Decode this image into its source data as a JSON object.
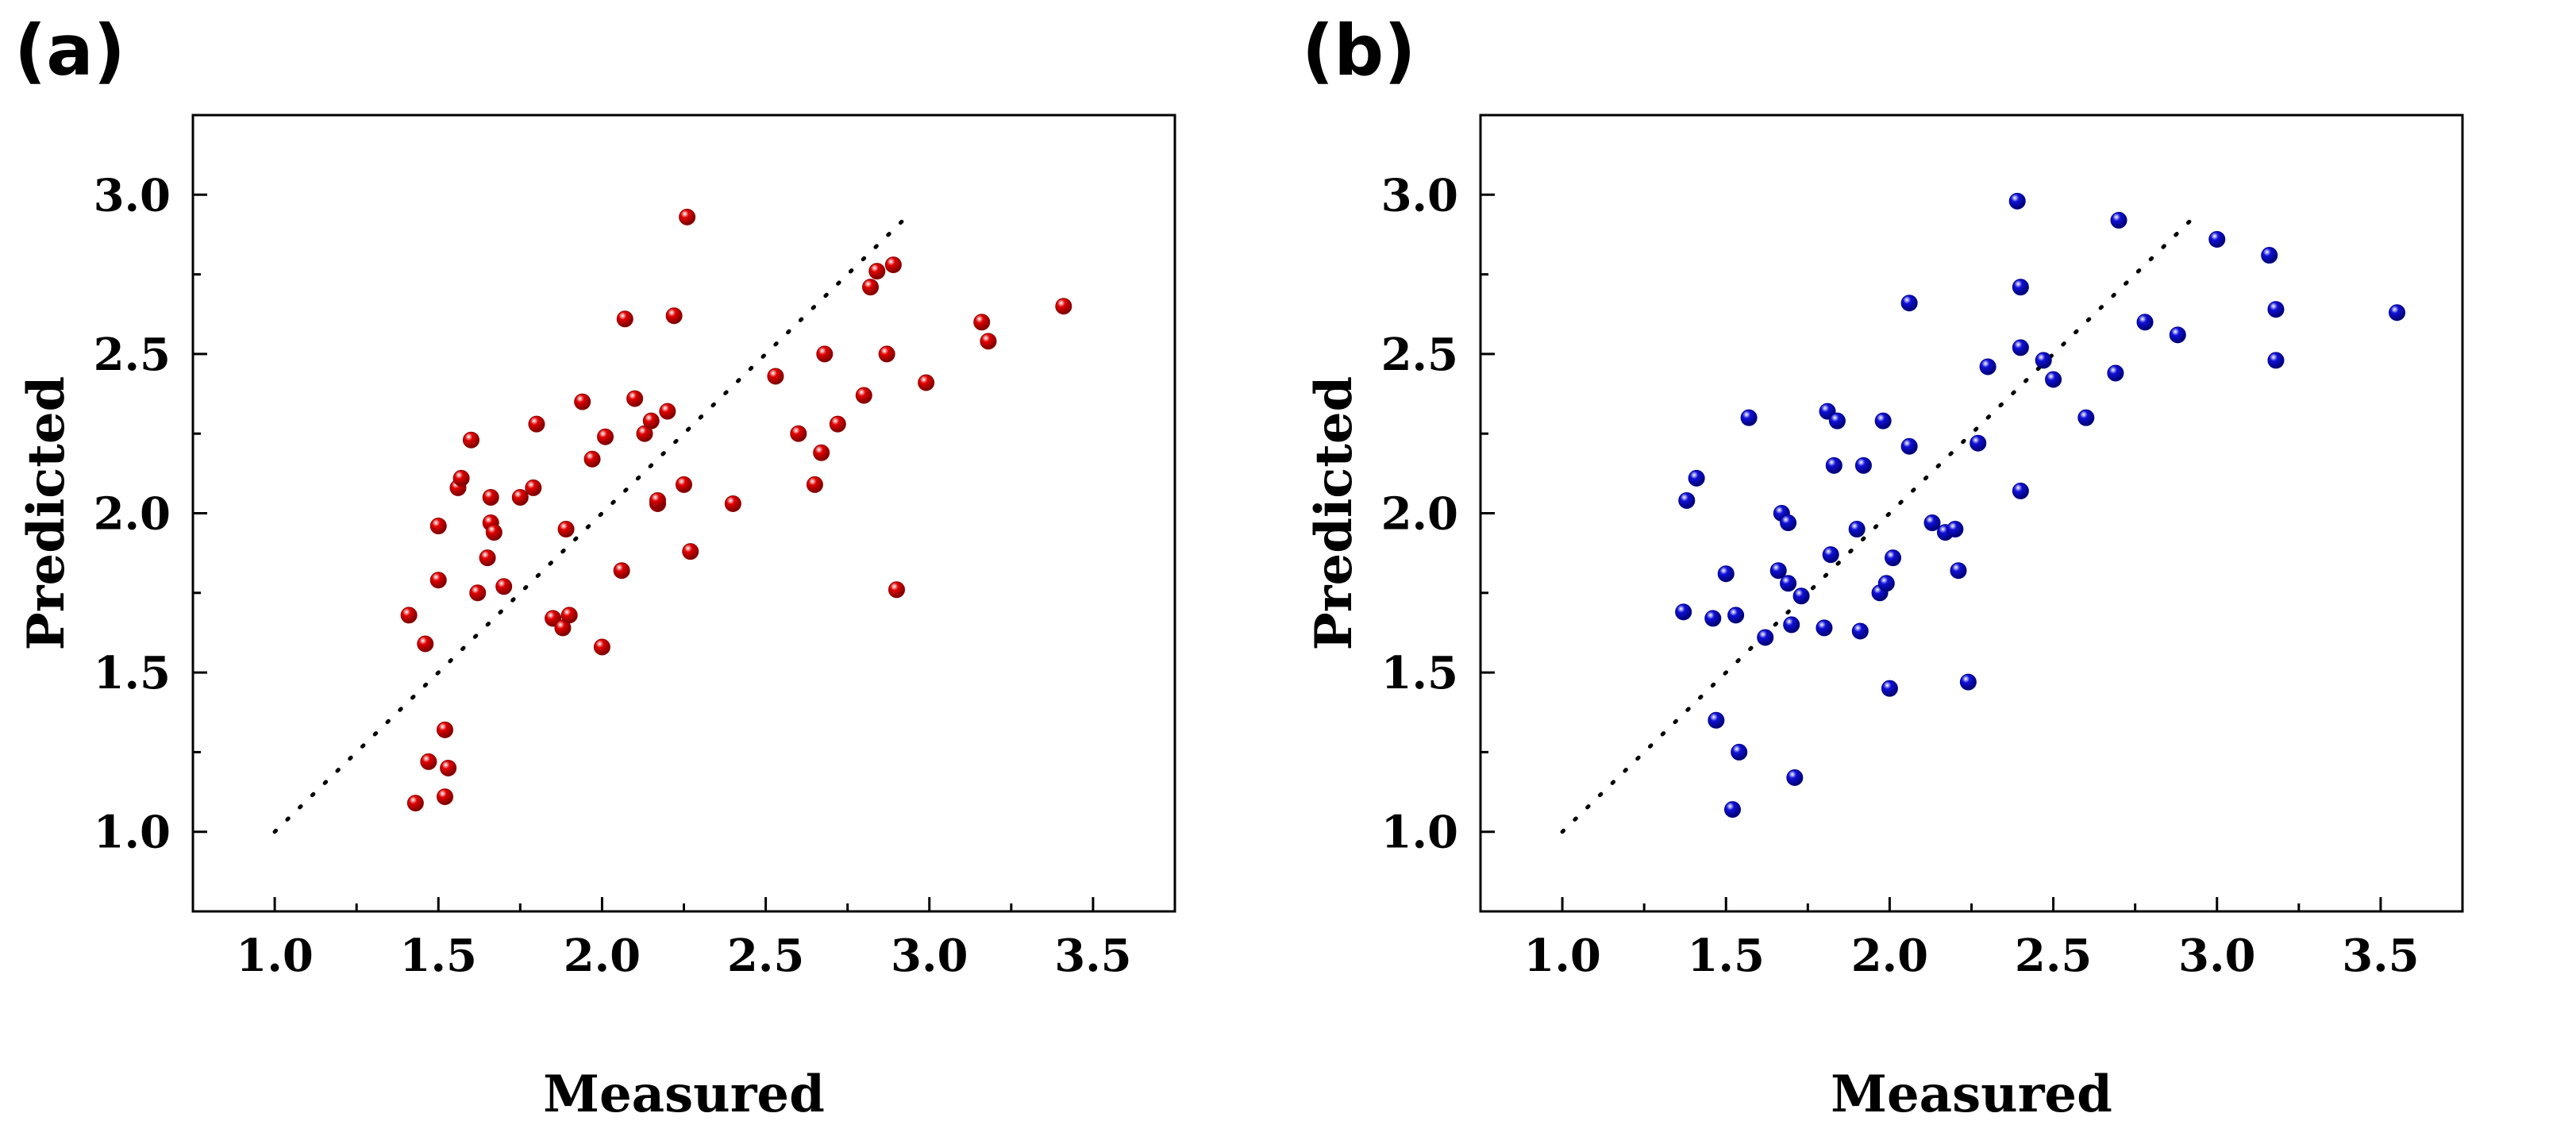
{
  "chart_data": [
    {
      "type": "scatter",
      "panel_label": "(a)",
      "xlabel": "Measured",
      "ylabel": "Predicted",
      "xlim": [
        0.75,
        3.75
      ],
      "ylim": [
        0.75,
        3.25
      ],
      "xticks": [
        1.0,
        1.5,
        2.0,
        2.5,
        3.0,
        3.5
      ],
      "yticks": [
        1.0,
        1.5,
        2.0,
        2.5,
        3.0
      ],
      "xtick_labels": [
        "1.0",
        "1.5",
        "2.0",
        "2.5",
        "3.0",
        "3.5"
      ],
      "ytick_labels": [
        "1.0",
        "1.5",
        "2.0",
        "2.5",
        "3.0"
      ],
      "marker_color": "#e00000",
      "reference_line": {
        "style": "dotted",
        "from": [
          1.0,
          1.0
        ],
        "to": [
          2.95,
          2.95
        ]
      },
      "points": [
        [
          1.41,
          1.68
        ],
        [
          1.43,
          1.09
        ],
        [
          1.46,
          1.59
        ],
        [
          1.47,
          1.22
        ],
        [
          1.5,
          1.79
        ],
        [
          1.5,
          1.96
        ],
        [
          1.52,
          1.11
        ],
        [
          1.52,
          1.32
        ],
        [
          1.53,
          1.2
        ],
        [
          1.56,
          2.08
        ],
        [
          1.57,
          2.11
        ],
        [
          1.6,
          2.23
        ],
        [
          1.62,
          1.75
        ],
        [
          1.65,
          1.86
        ],
        [
          1.66,
          1.97
        ],
        [
          1.66,
          2.05
        ],
        [
          1.67,
          1.94
        ],
        [
          1.7,
          1.77
        ],
        [
          1.75,
          2.05
        ],
        [
          1.79,
          2.08
        ],
        [
          1.8,
          2.28
        ],
        [
          1.85,
          1.67
        ],
        [
          1.88,
          1.64
        ],
        [
          1.89,
          1.95
        ],
        [
          1.9,
          1.68
        ],
        [
          1.94,
          2.35
        ],
        [
          1.97,
          2.17
        ],
        [
          2.0,
          1.58
        ],
        [
          2.01,
          2.24
        ],
        [
          2.06,
          1.82
        ],
        [
          2.07,
          2.61
        ],
        [
          2.1,
          2.36
        ],
        [
          2.13,
          2.25
        ],
        [
          2.15,
          2.29
        ],
        [
          2.17,
          2.03
        ],
        [
          2.17,
          2.04
        ],
        [
          2.2,
          2.32
        ],
        [
          2.22,
          2.62
        ],
        [
          2.25,
          2.09
        ],
        [
          2.26,
          2.93
        ],
        [
          2.27,
          1.88
        ],
        [
          2.4,
          2.03
        ],
        [
          2.53,
          2.43
        ],
        [
          2.6,
          2.25
        ],
        [
          2.65,
          2.09
        ],
        [
          2.67,
          2.19
        ],
        [
          2.68,
          2.5
        ],
        [
          2.72,
          2.28
        ],
        [
          2.8,
          2.37
        ],
        [
          2.82,
          2.71
        ],
        [
          2.84,
          2.76
        ],
        [
          2.87,
          2.5
        ],
        [
          2.89,
          2.78
        ],
        [
          2.9,
          1.76
        ],
        [
          2.99,
          2.41
        ],
        [
          3.16,
          2.6
        ],
        [
          3.18,
          2.54
        ],
        [
          3.41,
          2.65
        ]
      ]
    },
    {
      "type": "scatter",
      "panel_label": "(b)",
      "xlabel": "Measured",
      "ylabel": "Predicted",
      "xlim": [
        0.75,
        3.75
      ],
      "ylim": [
        0.75,
        3.25
      ],
      "xticks": [
        1.0,
        1.5,
        2.0,
        2.5,
        3.0,
        3.5
      ],
      "yticks": [
        1.0,
        1.5,
        2.0,
        2.5,
        3.0
      ],
      "xtick_labels": [
        "1.0",
        "1.5",
        "2.0",
        "2.5",
        "3.0",
        "3.5"
      ],
      "ytick_labels": [
        "1.0",
        "1.5",
        "2.0",
        "2.5",
        "3.0"
      ],
      "marker_color": "#1010d8",
      "reference_line": {
        "style": "dotted",
        "from": [
          1.0,
          1.0
        ],
        "to": [
          2.95,
          2.95
        ]
      },
      "points": [
        [
          1.37,
          1.69
        ],
        [
          1.38,
          2.04
        ],
        [
          1.41,
          2.11
        ],
        [
          1.46,
          1.67
        ],
        [
          1.47,
          1.35
        ],
        [
          1.5,
          1.81
        ],
        [
          1.52,
          1.07
        ],
        [
          1.53,
          1.68
        ],
        [
          1.54,
          1.25
        ],
        [
          1.57,
          2.3
        ],
        [
          1.62,
          1.61
        ],
        [
          1.66,
          1.82
        ],
        [
          1.67,
          2.0
        ],
        [
          1.69,
          1.78
        ],
        [
          1.69,
          1.97
        ],
        [
          1.7,
          1.65
        ],
        [
          1.71,
          1.17
        ],
        [
          1.73,
          1.74
        ],
        [
          1.8,
          1.64
        ],
        [
          1.81,
          2.32
        ],
        [
          1.82,
          1.87
        ],
        [
          1.83,
          2.15
        ],
        [
          1.84,
          2.29
        ],
        [
          1.9,
          1.95
        ],
        [
          1.91,
          1.63
        ],
        [
          1.92,
          2.15
        ],
        [
          1.97,
          1.75
        ],
        [
          1.98,
          2.29
        ],
        [
          1.99,
          1.78
        ],
        [
          2.0,
          1.45
        ],
        [
          2.01,
          1.86
        ],
        [
          2.06,
          2.21
        ],
        [
          2.06,
          2.66
        ],
        [
          2.13,
          1.97
        ],
        [
          2.17,
          1.94
        ],
        [
          2.2,
          1.95
        ],
        [
          2.21,
          1.82
        ],
        [
          2.24,
          1.47
        ],
        [
          2.27,
          2.22
        ],
        [
          2.3,
          2.46
        ],
        [
          2.39,
          2.98
        ],
        [
          2.4,
          2.52
        ],
        [
          2.4,
          2.71
        ],
        [
          2.4,
          2.07
        ],
        [
          2.47,
          2.48
        ],
        [
          2.5,
          2.42
        ],
        [
          2.6,
          2.3
        ],
        [
          2.69,
          2.44
        ],
        [
          2.7,
          2.92
        ],
        [
          2.78,
          2.6
        ],
        [
          2.88,
          2.56
        ],
        [
          3.0,
          2.86
        ],
        [
          3.16,
          2.81
        ],
        [
          3.18,
          2.64
        ],
        [
          3.18,
          2.48
        ],
        [
          3.55,
          2.63
        ]
      ]
    }
  ]
}
